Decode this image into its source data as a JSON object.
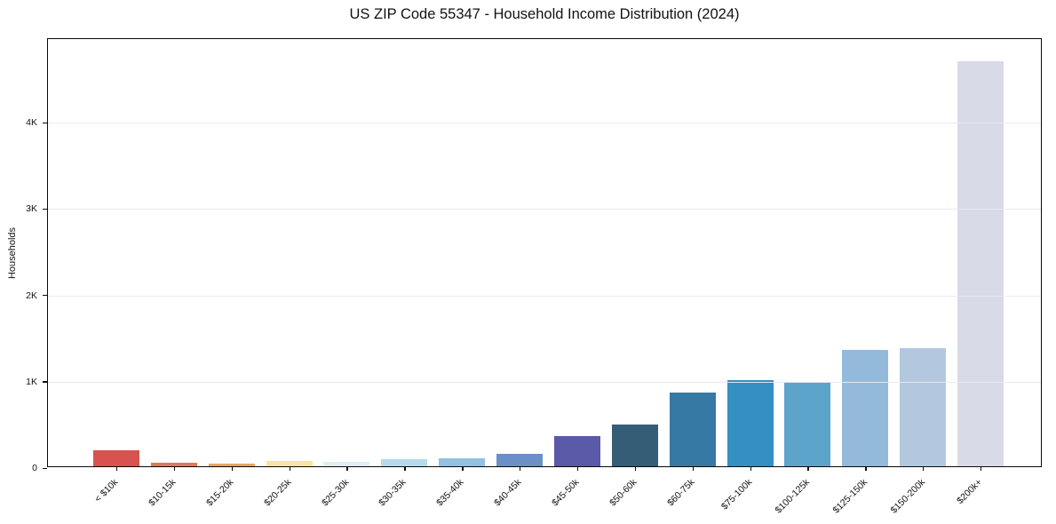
{
  "chart_data": {
    "type": "bar",
    "title": "US ZIP Code 55347 - Household Income Distribution (2024)",
    "xlabel": "",
    "ylabel": "Households",
    "ylim": [
      0,
      4970
    ],
    "grid": "horizontal-light",
    "legend": "none",
    "background": "#ffffff",
    "categories": [
      "< $10k",
      "$10-15k",
      "$15-20k",
      "$20-25k",
      "$25-30k",
      "$30-35k",
      "$35-40k",
      "$40-45k",
      "$45-50k",
      "$50-60k",
      "$60-75k",
      "$75-100k",
      "$100-125k",
      "$125-150k",
      "$150-200k",
      "$200k+"
    ],
    "values": [
      190,
      45,
      30,
      60,
      50,
      80,
      90,
      140,
      350,
      480,
      850,
      1000,
      975,
      1345,
      1365,
      4690
    ],
    "bar_colors": [
      "#d8524f",
      "#df795c",
      "#e9a562",
      "#f8e5a1",
      "#e2edf1",
      "#b6daeb",
      "#93c1e1",
      "#6b90c6",
      "#5a5aa8",
      "#355d76",
      "#3779a5",
      "#3390c1",
      "#5ca4c9",
      "#93badb",
      "#b3c8de",
      "#d8dae7"
    ],
    "y_ticks": [
      {
        "value": 0,
        "label": "0"
      },
      {
        "value": 1000,
        "label": "1K"
      },
      {
        "value": 2000,
        "label": "2K"
      },
      {
        "value": 3000,
        "label": "3K"
      },
      {
        "value": 4000,
        "label": "4K"
      }
    ]
  }
}
